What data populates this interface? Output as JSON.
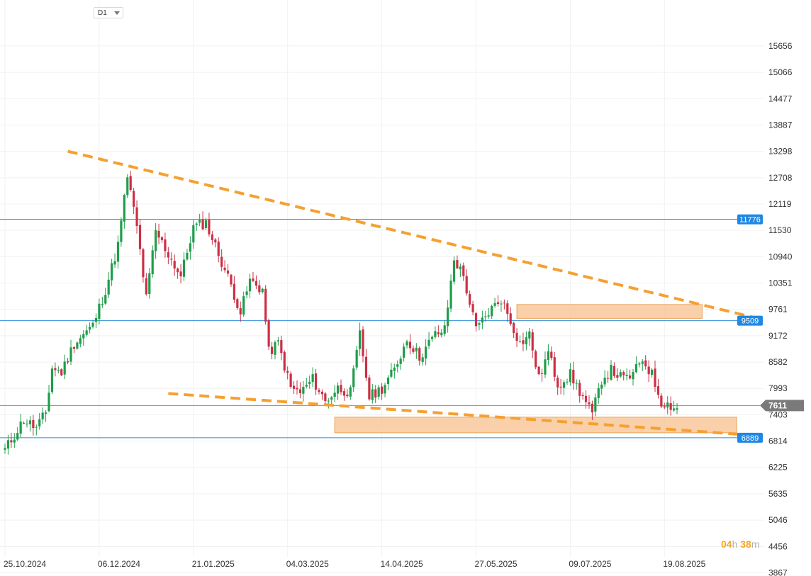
{
  "toolbar": {
    "timeframe": "D1"
  },
  "countdown": {
    "hours": "04",
    "hours_unit": "h",
    "minutes": "38",
    "minutes_unit": "m"
  },
  "colors": {
    "up": "#1e9e4a",
    "down": "#cc2f45",
    "trend": "#f5a031",
    "zone_fill": "#f8c89a",
    "zone_border": "#e9a35a",
    "level_line": "#2e8bd6",
    "level_badge": "#1e88e5",
    "price_line": "#8a8a8a",
    "price_badge": "#7a7a7a",
    "grid": "#f1f1f1"
  },
  "chart_data": {
    "type": "candlestick",
    "symbol_timeframe": "D1",
    "y_ticks": [
      15656,
      15066,
      14477,
      13887,
      13298,
      12708,
      12119,
      11530,
      10940,
      10351,
      9761,
      9172,
      8582,
      7993,
      7403,
      6814,
      6225,
      5635,
      5046,
      4456,
      3867
    ],
    "ylim": [
      3700,
      16400
    ],
    "x_ticks": [
      "25.10.2024",
      "06.12.2024",
      "21.01.2025",
      "04.03.2025",
      "14.04.2025",
      "27.05.2025",
      "09.07.2025",
      "19.08.2025"
    ],
    "bars_between_ticks": 30,
    "horizontal_levels": [
      {
        "value": 11776,
        "label": "11776"
      },
      {
        "value": 9509,
        "label": "9509"
      },
      {
        "value": 6889,
        "label": "6889"
      }
    ],
    "current_price": {
      "value": 7611,
      "label": "7611"
    },
    "trendlines": [
      {
        "from": {
          "bar": 20,
          "price": 13300
        },
        "to": {
          "bar": 238,
          "price": 9590
        }
      },
      {
        "from": {
          "bar": 52,
          "price": 7880
        },
        "to": {
          "bar": 235,
          "price": 6960
        }
      }
    ],
    "zones": [
      {
        "from_bar": 163,
        "to_bar": 222,
        "low": 9560,
        "high": 9870
      },
      {
        "from_bar": 105,
        "to_bar": 233,
        "low": 7000,
        "high": 7350
      }
    ],
    "anchors": [
      [
        0,
        6620
      ],
      [
        3,
        6950
      ],
      [
        6,
        7300
      ],
      [
        10,
        7100
      ],
      [
        13,
        7450
      ],
      [
        15,
        8450
      ],
      [
        18,
        8350
      ],
      [
        22,
        9000
      ],
      [
        28,
        9400
      ],
      [
        32,
        10200
      ],
      [
        36,
        11200
      ],
      [
        39,
        12750
      ],
      [
        42,
        11600
      ],
      [
        45,
        10000
      ],
      [
        48,
        11500
      ],
      [
        52,
        11000
      ],
      [
        56,
        10500
      ],
      [
        60,
        11600
      ],
      [
        64,
        11700
      ],
      [
        68,
        11000
      ],
      [
        72,
        10300
      ],
      [
        75,
        9700
      ],
      [
        78,
        10400
      ],
      [
        82,
        10200
      ],
      [
        84,
        8800
      ],
      [
        87,
        9000
      ],
      [
        91,
        8000
      ],
      [
        94,
        7900
      ],
      [
        98,
        8200
      ],
      [
        102,
        7700
      ],
      [
        106,
        8000
      ],
      [
        110,
        7900
      ],
      [
        113,
        9200
      ],
      [
        116,
        7800
      ],
      [
        120,
        8000
      ],
      [
        124,
        8400
      ],
      [
        128,
        9100
      ],
      [
        132,
        8700
      ],
      [
        137,
        9200
      ],
      [
        140,
        9300
      ],
      [
        143,
        10900
      ],
      [
        146,
        10500
      ],
      [
        150,
        9300
      ],
      [
        154,
        9700
      ],
      [
        158,
        10000
      ],
      [
        161,
        9500
      ],
      [
        164,
        9000
      ],
      [
        167,
        9200
      ],
      [
        170,
        8200
      ],
      [
        173,
        8800
      ],
      [
        176,
        8100
      ],
      [
        180,
        8300
      ],
      [
        184,
        7800
      ],
      [
        187,
        7400
      ],
      [
        190,
        8200
      ],
      [
        193,
        8400
      ],
      [
        197,
        8200
      ],
      [
        200,
        8300
      ],
      [
        203,
        8650
      ],
      [
        206,
        8300
      ],
      [
        209,
        7700
      ],
      [
        214,
        7550
      ]
    ]
  }
}
